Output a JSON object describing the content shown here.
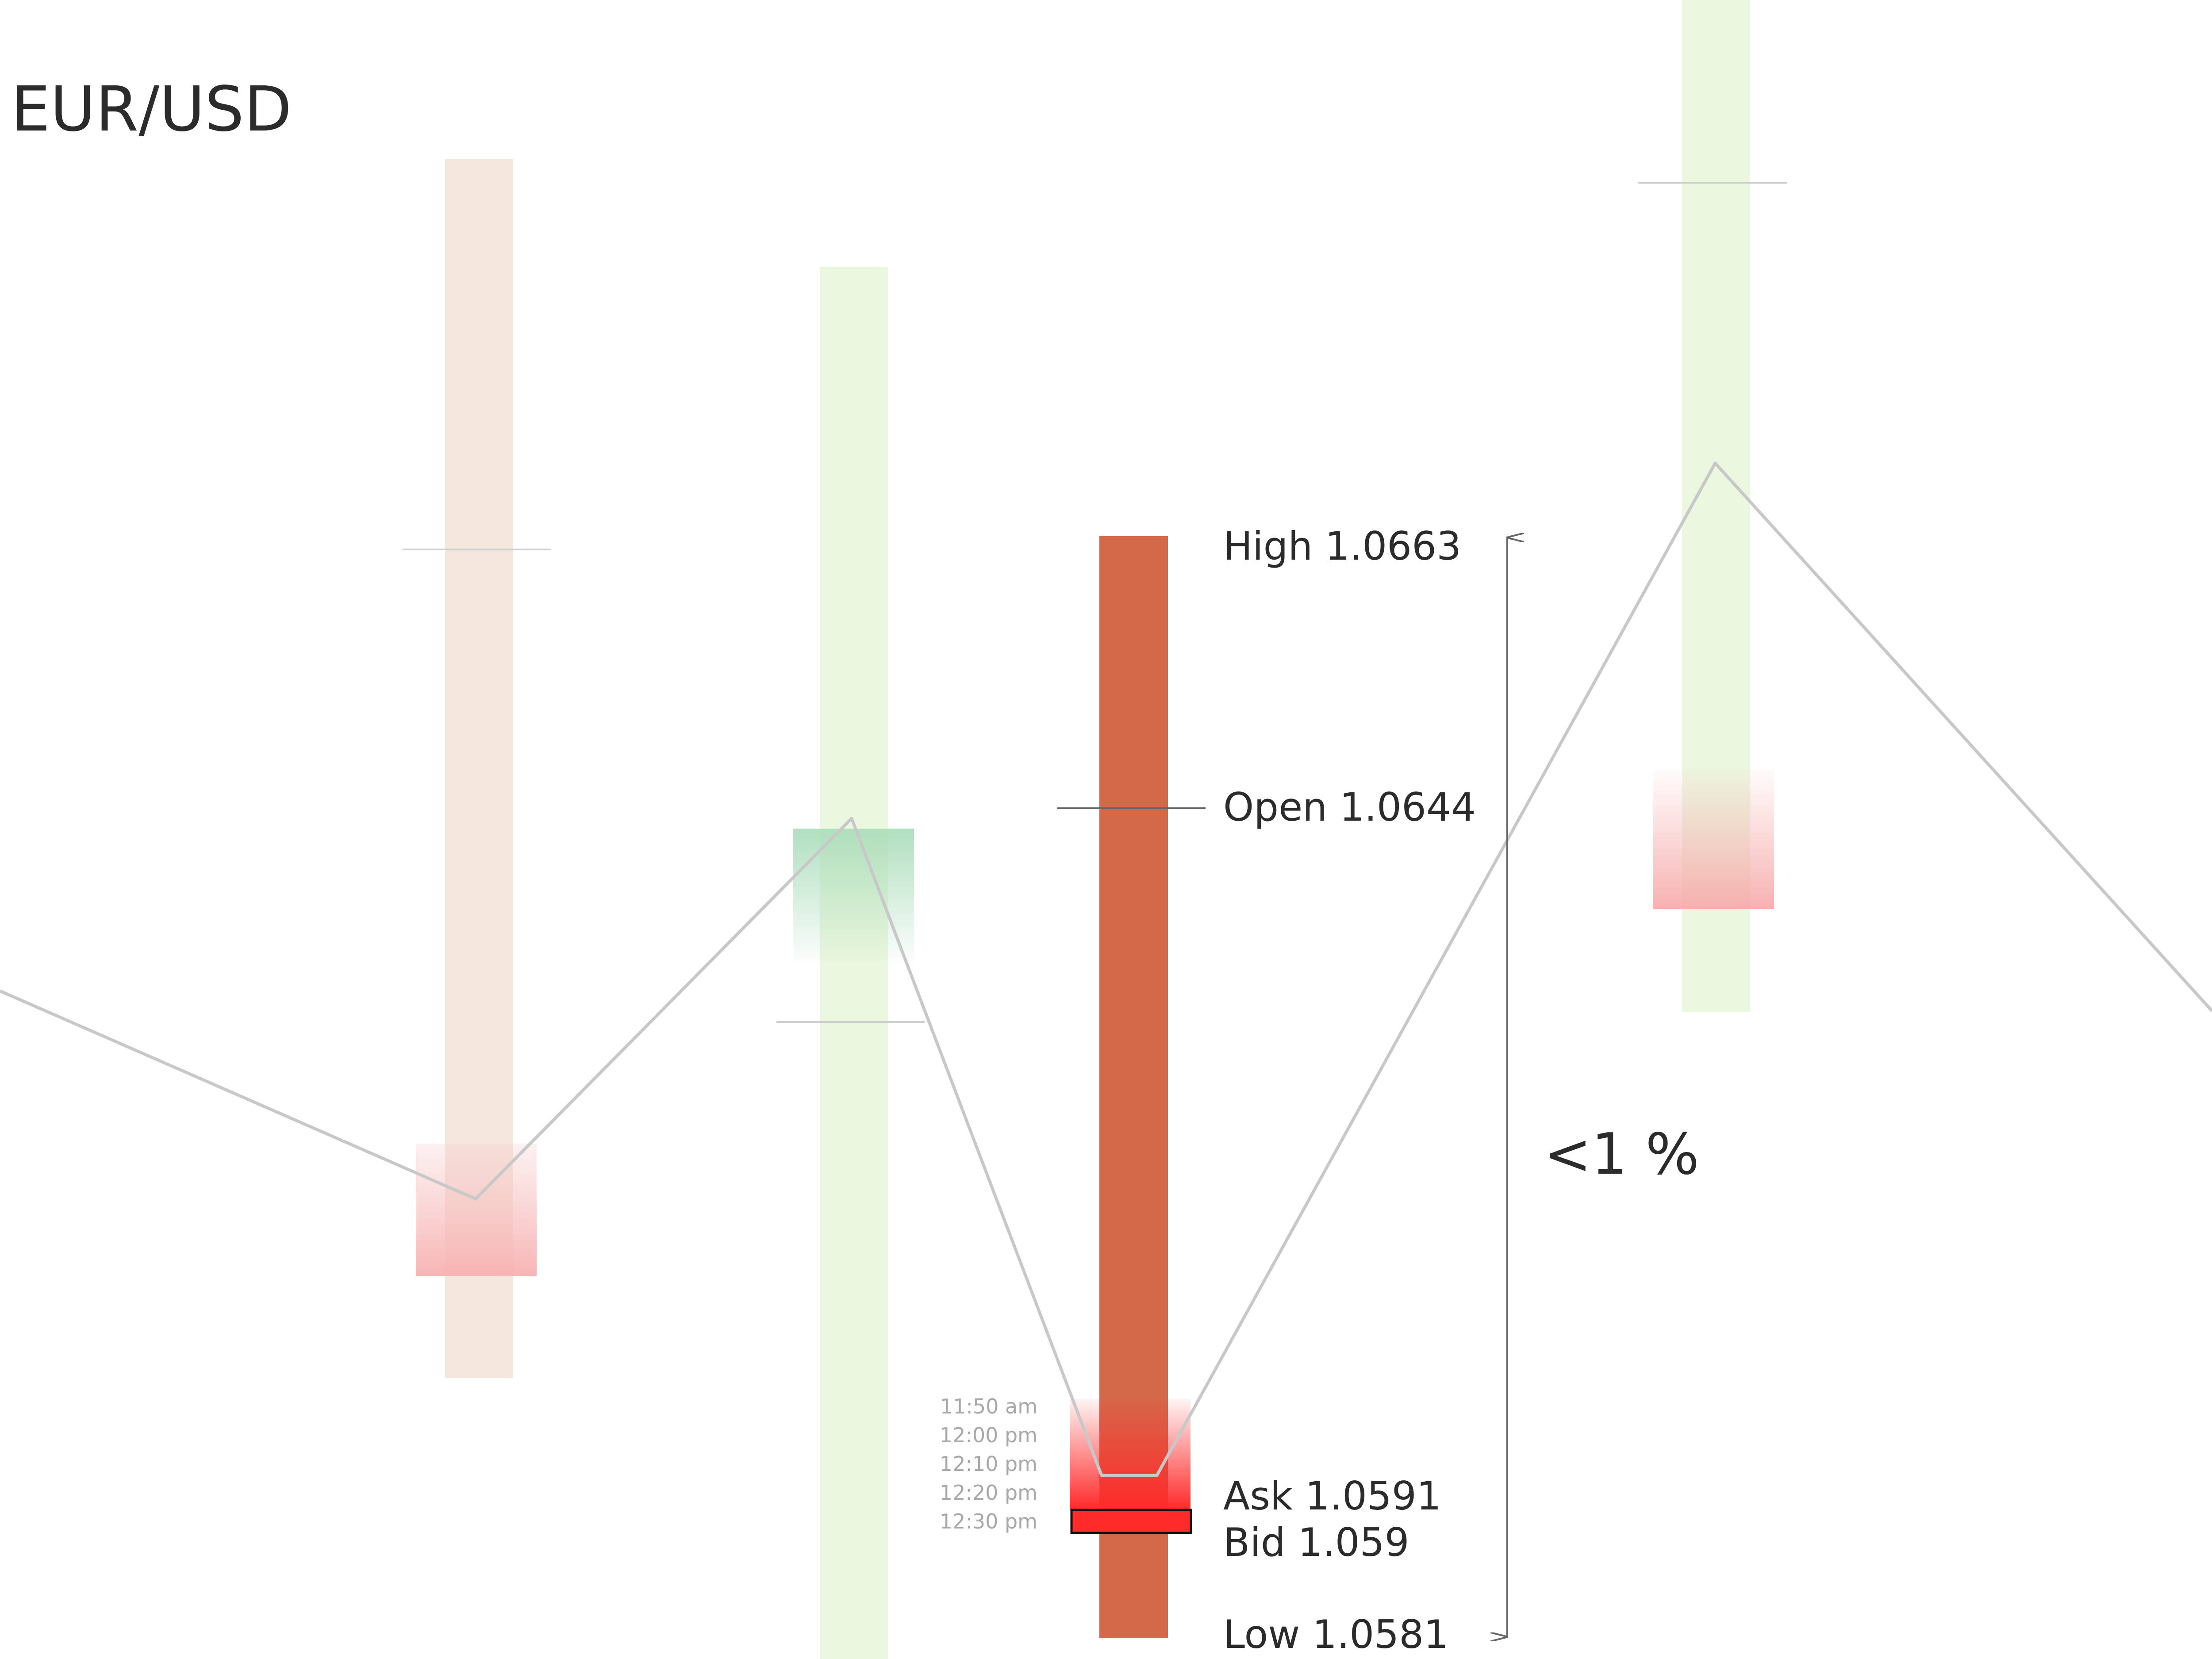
{
  "header": {
    "pair": "EUR/USD"
  },
  "chart_data": {
    "type": "candlestick",
    "title": "EUR/USD",
    "focus_candle": {
      "high": 1.0663,
      "open": 1.0644,
      "ask": 1.0591,
      "bid": 1.059,
      "low": 1.0581,
      "color": "#d4694a",
      "range_text": "<1 %",
      "labels": {
        "high": "High 1.0663",
        "open": "Open 1.0644",
        "ask": "Ask 1.0591",
        "bid": "Bid 1.059",
        "low": "Low 1.0581"
      },
      "times": [
        "11:50 am",
        "12:00 pm",
        "12:10 pm",
        "12:20 pm",
        "12:30 pm"
      ]
    },
    "background_candles": [
      {
        "direction": "down",
        "color": "#f6e7de"
      },
      {
        "direction": "up",
        "color": "#ecf7e0"
      },
      {
        "direction": "up",
        "color": "#ecf7e0"
      }
    ],
    "trend_line_color": "#c8c8c8",
    "highlight_colors": {
      "down": "#f7b8b8",
      "up": "#a8dcb8",
      "active": "#ff2a2a"
    }
  }
}
